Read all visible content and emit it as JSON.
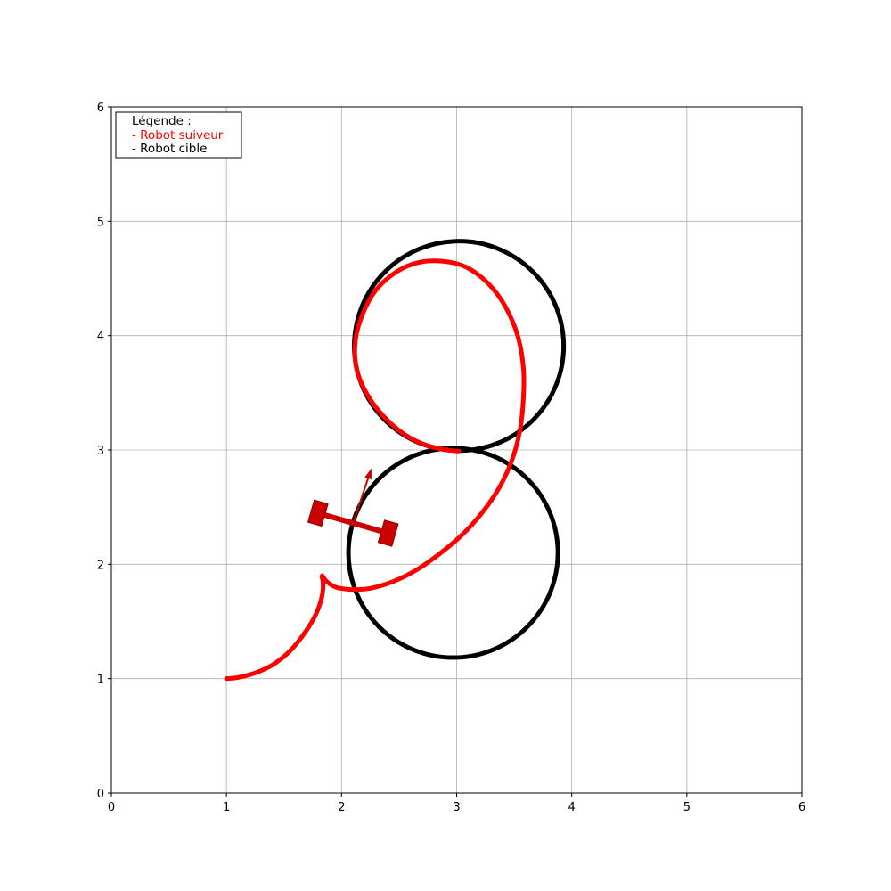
{
  "chart_data": {
    "type": "line",
    "title": "",
    "xlabel": "",
    "ylabel": "",
    "xlim": [
      0,
      6
    ],
    "ylim": [
      0,
      6
    ],
    "xticks": [
      "0",
      "1",
      "2",
      "3",
      "4",
      "5",
      "6"
    ],
    "yticks": [
      "0",
      "1",
      "2",
      "3",
      "4",
      "5",
      "6"
    ],
    "grid": true,
    "legend": {
      "placement": "top-left",
      "title": "Légende :",
      "entries": [
        {
          "label": "- Robot suiveur",
          "color": "#ff0000"
        },
        {
          "label": "- Robot cible",
          "color": "#000000"
        }
      ]
    },
    "series": [
      {
        "color": "#000000",
        "shape": "figure-eight",
        "loops": [
          {
            "center": [
              3.02,
              3.91
            ],
            "radius": 0.91
          },
          {
            "center": [
              2.97,
              2.1
            ],
            "radius": 0.91
          }
        ]
      },
      {
        "color": "#ff0000",
        "points": [
          [
            1.0,
            1.0
          ],
          [
            1.1,
            1.01
          ],
          [
            1.25,
            1.05
          ],
          [
            1.4,
            1.12
          ],
          [
            1.55,
            1.24
          ],
          [
            1.68,
            1.4
          ],
          [
            1.78,
            1.57
          ],
          [
            1.83,
            1.72
          ],
          [
            1.84,
            1.83
          ],
          [
            1.83,
            1.9
          ],
          [
            1.87,
            1.85
          ],
          [
            1.95,
            1.8
          ],
          [
            2.08,
            1.78
          ],
          [
            2.25,
            1.79
          ],
          [
            2.45,
            1.85
          ],
          [
            2.65,
            1.95
          ],
          [
            2.85,
            2.09
          ],
          [
            3.05,
            2.26
          ],
          [
            3.22,
            2.45
          ],
          [
            3.37,
            2.67
          ],
          [
            3.48,
            2.91
          ],
          [
            3.55,
            3.17
          ],
          [
            3.58,
            3.45
          ],
          [
            3.58,
            3.72
          ],
          [
            3.53,
            4.0
          ],
          [
            3.42,
            4.26
          ],
          [
            3.27,
            4.46
          ],
          [
            3.08,
            4.6
          ],
          [
            2.88,
            4.65
          ],
          [
            2.67,
            4.64
          ],
          [
            2.48,
            4.56
          ],
          [
            2.3,
            4.4
          ],
          [
            2.18,
            4.18
          ],
          [
            2.12,
            3.95
          ],
          [
            2.13,
            3.71
          ],
          [
            2.22,
            3.49
          ],
          [
            2.36,
            3.3
          ],
          [
            2.54,
            3.14
          ],
          [
            2.74,
            3.04
          ],
          [
            2.92,
            3.0
          ],
          [
            3.02,
            2.99
          ]
        ]
      }
    ],
    "robot": {
      "color": "#cc0000",
      "position": [
        2.1,
        2.36
      ],
      "heading_deg": 74,
      "arrow_tip": [
        2.26,
        2.84
      ]
    }
  }
}
